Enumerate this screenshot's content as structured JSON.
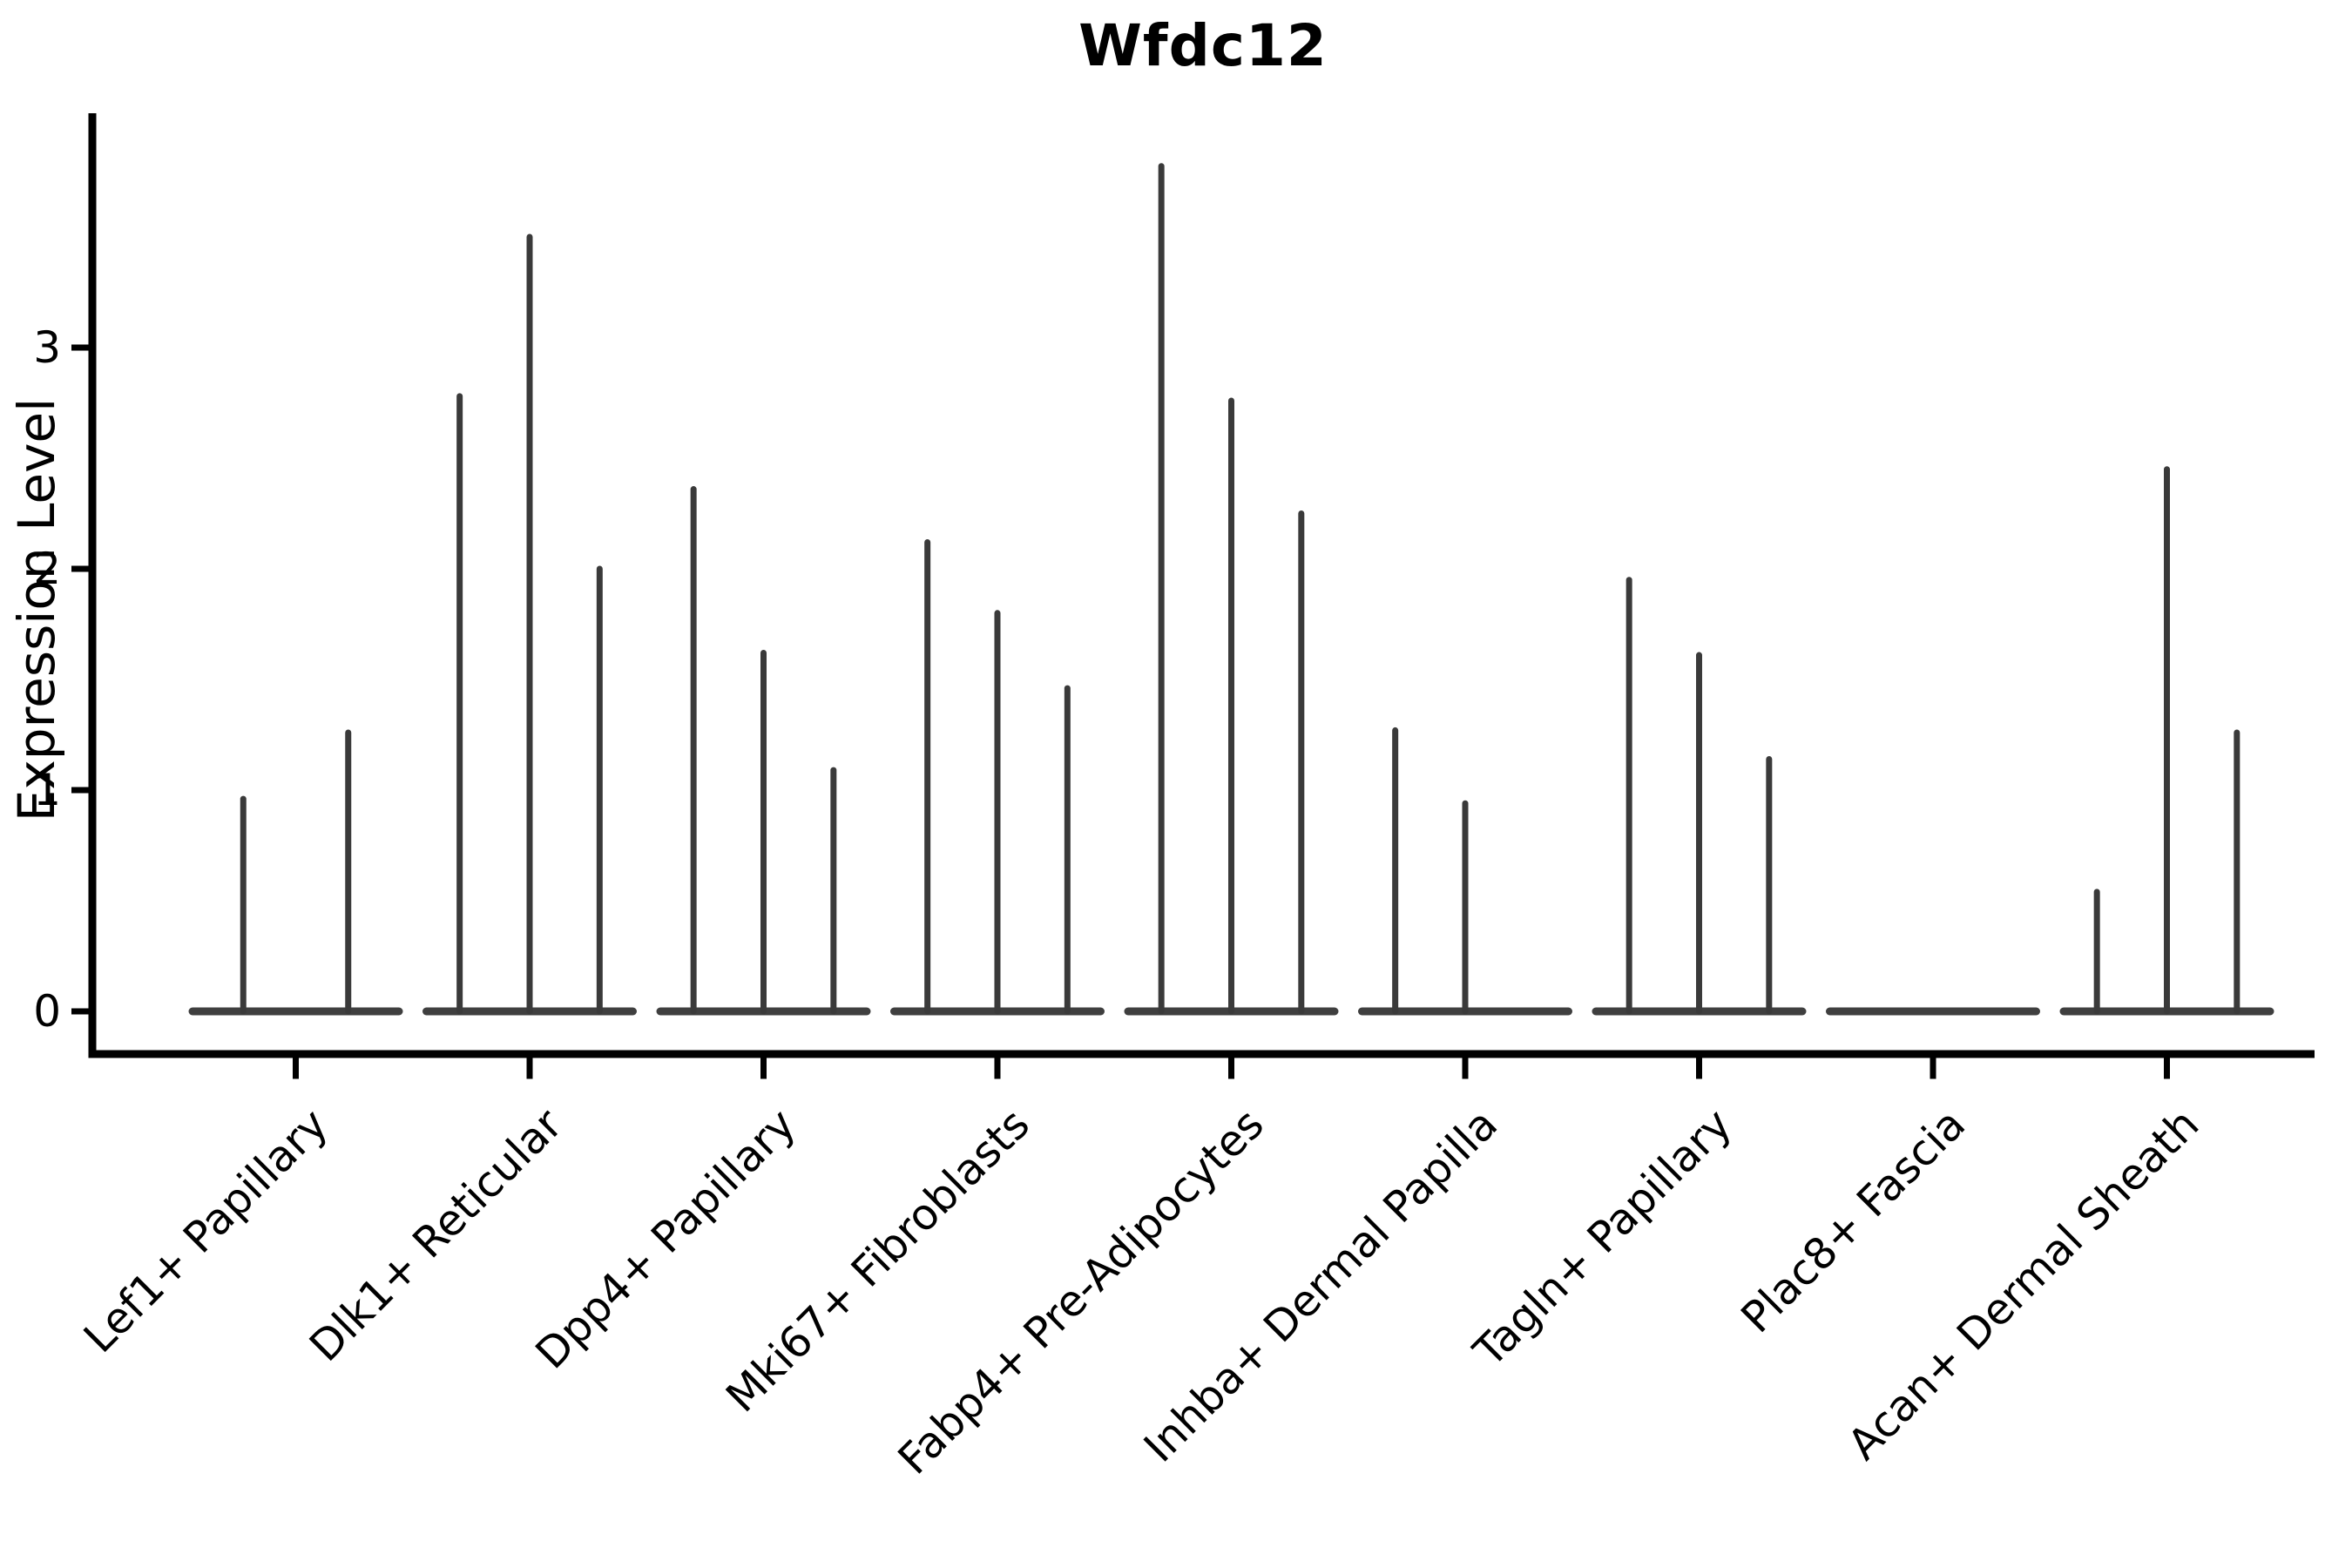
{
  "chart_data": {
    "type": "violin",
    "title": "Wfdc12",
    "ylabel": "Expression Level",
    "xlabel": "",
    "yticks": [
      0,
      1,
      2,
      3
    ],
    "ylim": [
      -0.2,
      4.06
    ],
    "grid": "off",
    "legend_position": "none",
    "categories": [
      "Lef1+ Papillary",
      "Dlk1+ Reticular",
      "Dpp4+ Papillary",
      "Mki67+ Fibroblasts",
      "Fabp4+ Pre-Adipocytes",
      "Inhba+ Dermal Papilla",
      "Tagln+ Papillary",
      "Plac8+ Fascia",
      "Acan+ Dermal Sheath"
    ],
    "groups": [
      {
        "category": "Lef1+ Papillary",
        "violin_peak_values": [
          0.96,
          1.26
        ]
      },
      {
        "category": "Dlk1+ Reticular",
        "violin_peak_values": [
          2.78,
          3.5,
          2.0
        ]
      },
      {
        "category": "Dpp4+ Papillary",
        "violin_peak_values": [
          2.36,
          1.62,
          1.09
        ]
      },
      {
        "category": "Mki67+ Fibroblasts",
        "violin_peak_values": [
          2.12,
          1.8,
          1.46
        ]
      },
      {
        "category": "Fabp4+ Pre-Adipocytes",
        "violin_peak_values": [
          3.82,
          2.76,
          2.25
        ]
      },
      {
        "category": "Inhba+ Dermal Papilla",
        "violin_peak_values": [
          1.27,
          0.94,
          0
        ]
      },
      {
        "category": "Tagln+ Papillary",
        "violin_peak_values": [
          1.95,
          1.61,
          1.14
        ]
      },
      {
        "category": "Plac8+ Fascia",
        "violin_peak_values": [
          0,
          0,
          0
        ]
      },
      {
        "category": "Acan+ Dermal Sheath",
        "violin_peak_values": [
          0.54,
          2.45,
          1.26
        ]
      }
    ],
    "colors": {
      "spike": "#3a3a3a",
      "baseline": "#3f3f3f",
      "axis": "#000000",
      "text": "#000000",
      "background": "#ffffff"
    }
  }
}
